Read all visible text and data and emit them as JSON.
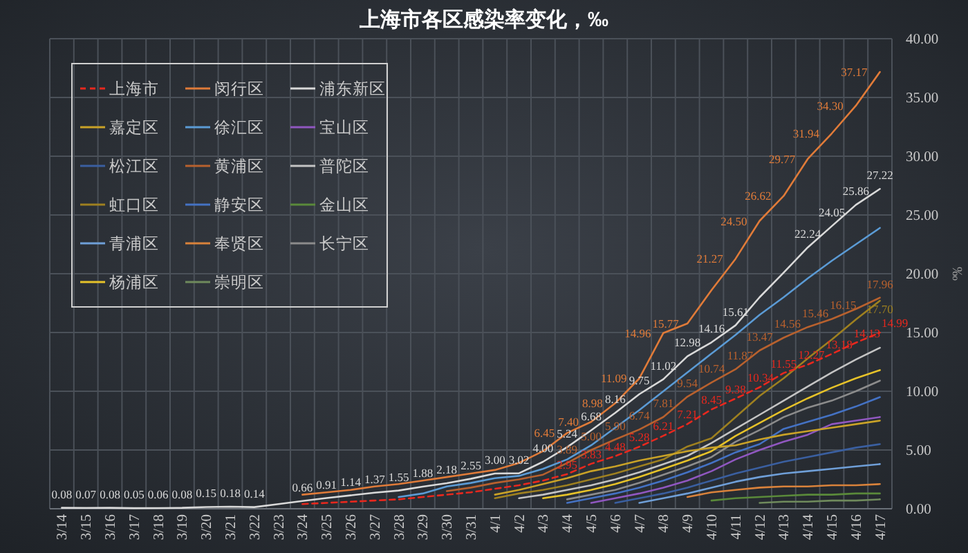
{
  "chart_data": {
    "type": "line",
    "title": "上海市各区感染率变化，‰",
    "ylabel": "‰",
    "categories": [
      "3/14",
      "3/15",
      "3/16",
      "3/17",
      "3/18",
      "3/19",
      "3/20",
      "3/21",
      "3/22",
      "3/23",
      "3/24",
      "3/25",
      "3/26",
      "3/27",
      "3/28",
      "3/29",
      "3/30",
      "3/31",
      "4/1",
      "4/2",
      "4/3",
      "4/4",
      "4/5",
      "4/6",
      "4/7",
      "4/8",
      "4/9",
      "4/10",
      "4/11",
      "4/12",
      "4/13",
      "4/14",
      "4/15",
      "4/16",
      "4/17"
    ],
    "ylim": [
      0,
      40
    ],
    "yticks": [
      {
        "value": 0,
        "label": "0.00"
      },
      {
        "value": 5,
        "label": "5.00"
      },
      {
        "value": 10,
        "label": "10.00"
      },
      {
        "value": 15,
        "label": "15.00"
      },
      {
        "value": 20,
        "label": "20.00"
      },
      {
        "value": 25,
        "label": "25.00"
      },
      {
        "value": 30,
        "label": "30.00"
      },
      {
        "value": 35,
        "label": "35.00"
      },
      {
        "value": 40,
        "label": "40.00"
      }
    ],
    "grid": true,
    "legend": "top left",
    "series": [
      {
        "name": "上海市",
        "color": "#e8281e",
        "line_style": "dashed",
        "values": [
          null,
          null,
          null,
          null,
          null,
          null,
          null,
          null,
          null,
          null,
          0.4,
          0.5,
          0.6,
          0.7,
          0.8,
          1.0,
          1.2,
          1.4,
          1.7,
          2.0,
          2.4,
          2.95,
          3.83,
          4.48,
          5.28,
          6.21,
          7.21,
          8.45,
          9.38,
          10.34,
          11.55,
          12.27,
          13.18,
          14.13,
          14.99
        ],
        "value_labels": [
          null,
          null,
          null,
          null,
          null,
          null,
          null,
          null,
          null,
          null,
          null,
          null,
          null,
          null,
          null,
          null,
          null,
          null,
          null,
          null,
          null,
          "2.95",
          "3.83",
          "4.48",
          "5.28",
          "6.21",
          "7.21",
          "8.45",
          "9.38",
          "10.34",
          "11.55",
          "12.27",
          "13.18",
          "14.13",
          "14.99"
        ]
      },
      {
        "name": "闵行区",
        "color": "#e07b39",
        "values": [
          null,
          null,
          null,
          null,
          null,
          null,
          null,
          null,
          null,
          null,
          1.2,
          1.4,
          1.6,
          1.9,
          2.1,
          2.4,
          2.7,
          3.0,
          3.3,
          3.9,
          4.9,
          6.45,
          7.4,
          8.98,
          11.09,
          14.96,
          15.77,
          18.6,
          21.27,
          24.5,
          26.62,
          29.77,
          31.94,
          34.3,
          37.17
        ],
        "value_labels": [
          null,
          null,
          null,
          null,
          null,
          null,
          null,
          null,
          null,
          null,
          null,
          null,
          null,
          null,
          null,
          null,
          null,
          null,
          null,
          null,
          null,
          "6.45",
          "7.40",
          "8.98",
          "11.09",
          "14.96",
          "15.77",
          null,
          "21.27",
          "24.50",
          "26.62",
          "29.77",
          "31.94",
          "34.30",
          "37.17"
        ]
      },
      {
        "name": "浦东新区",
        "color": "#d9d9d9",
        "values": [
          0.08,
          0.07,
          0.08,
          0.05,
          0.06,
          0.08,
          0.15,
          0.18,
          0.14,
          0.4,
          0.66,
          0.91,
          1.14,
          1.37,
          1.55,
          1.88,
          2.18,
          2.55,
          3.0,
          3.02,
          4.0,
          5.24,
          6.68,
          8.16,
          9.75,
          11.02,
          12.98,
          14.16,
          15.61,
          18.0,
          20.1,
          22.24,
          24.05,
          25.86,
          27.22
        ],
        "value_labels": [
          "0.08",
          "0.07",
          "0.08",
          "0.05",
          "0.06",
          "0.08",
          "0.15",
          "0.18",
          "0.14",
          null,
          "0.66",
          "0.91",
          "1.14",
          "1.37",
          "1.55",
          "1.88",
          "2.18",
          "2.55",
          "3.00",
          "3.02",
          "4.00",
          "5.24",
          "6.68",
          "8.16",
          "9.75",
          "11.02",
          "12.98",
          "14.16",
          "15.61",
          null,
          null,
          "22.24",
          "24.05",
          "25.86",
          "27.22"
        ]
      },
      {
        "name": "嘉定区",
        "color": "#c9a227",
        "values": [
          null,
          null,
          null,
          null,
          null,
          null,
          null,
          null,
          null,
          null,
          null,
          null,
          null,
          null,
          null,
          null,
          null,
          null,
          1.2,
          1.6,
          2.1,
          2.6,
          3.2,
          3.6,
          4.1,
          4.5,
          4.9,
          5.2,
          5.4,
          5.9,
          6.3,
          6.6,
          6.9,
          7.2,
          7.5
        ]
      },
      {
        "name": "徐汇区",
        "color": "#5b9bd5",
        "values": [
          null,
          null,
          null,
          null,
          null,
          null,
          null,
          null,
          null,
          null,
          null,
          null,
          null,
          null,
          1.0,
          1.3,
          1.9,
          2.2,
          2.6,
          2.8,
          3.4,
          4.2,
          5.4,
          6.9,
          8.4,
          10.0,
          11.6,
          13.2,
          14.8,
          16.5,
          18.0,
          19.6,
          21.1,
          22.5,
          23.9
        ]
      },
      {
        "name": "宝山区",
        "color": "#9057c0",
        "values": [
          null,
          null,
          null,
          null,
          null,
          null,
          null,
          null,
          null,
          null,
          null,
          null,
          null,
          null,
          null,
          null,
          null,
          null,
          null,
          null,
          null,
          null,
          0.5,
          0.9,
          1.3,
          1.8,
          2.4,
          3.2,
          4.2,
          5.0,
          5.7,
          6.3,
          7.2,
          7.5,
          7.8
        ]
      },
      {
        "name": "松江区",
        "color": "#3a5fa0",
        "values": [
          null,
          null,
          null,
          null,
          null,
          null,
          null,
          null,
          null,
          null,
          null,
          null,
          null,
          null,
          null,
          null,
          null,
          null,
          null,
          null,
          null,
          null,
          null,
          0.5,
          0.9,
          1.3,
          1.8,
          2.4,
          3.0,
          3.5,
          4.0,
          4.4,
          4.8,
          5.2,
          5.5
        ]
      },
      {
        "name": "黄浦区",
        "color": "#b8612e",
        "values": [
          null,
          null,
          null,
          null,
          null,
          null,
          null,
          null,
          null,
          null,
          null,
          null,
          null,
          null,
          null,
          null,
          1.5,
          1.8,
          2.2,
          2.5,
          2.9,
          3.89,
          5.0,
          5.9,
          6.74,
          7.81,
          9.54,
          10.74,
          11.87,
          13.47,
          14.56,
          15.46,
          16.15,
          17.0,
          17.96
        ],
        "value_labels": [
          null,
          null,
          null,
          null,
          null,
          null,
          null,
          null,
          null,
          null,
          null,
          null,
          null,
          null,
          null,
          null,
          null,
          null,
          null,
          null,
          null,
          "3.89",
          "5.00",
          "5.90",
          "6.74",
          "7.81",
          "9.54",
          "10.74",
          "11.87",
          "13.47",
          "14.56",
          "15.46",
          "16.15",
          null,
          "17.96"
        ]
      },
      {
        "name": "普陀区",
        "color": "#c4c4c4",
        "values": [
          null,
          null,
          null,
          null,
          null,
          null,
          null,
          null,
          null,
          null,
          null,
          null,
          null,
          null,
          null,
          null,
          null,
          null,
          null,
          0.9,
          1.2,
          1.6,
          2.0,
          2.5,
          3.1,
          3.8,
          4.5,
          5.6,
          6.8,
          8.0,
          9.2,
          10.4,
          11.6,
          12.7,
          13.7
        ]
      },
      {
        "name": "虹口区",
        "color": "#9e8020",
        "values": [
          null,
          null,
          null,
          null,
          null,
          null,
          null,
          null,
          null,
          null,
          null,
          null,
          null,
          null,
          null,
          null,
          null,
          null,
          0.9,
          1.3,
          1.6,
          2.0,
          2.5,
          3.0,
          3.6,
          4.2,
          5.3,
          6.0,
          7.8,
          9.6,
          11.1,
          12.8,
          14.4,
          16.1,
          17.7
        ],
        "value_labels": [
          null,
          null,
          null,
          null,
          null,
          null,
          null,
          null,
          null,
          null,
          null,
          null,
          null,
          null,
          null,
          null,
          null,
          null,
          null,
          null,
          null,
          null,
          null,
          null,
          null,
          null,
          null,
          null,
          null,
          null,
          null,
          null,
          null,
          null,
          "17.70"
        ]
      },
      {
        "name": "静安区",
        "color": "#4472c4",
        "values": [
          null,
          null,
          null,
          null,
          null,
          null,
          null,
          null,
          null,
          null,
          null,
          null,
          null,
          null,
          null,
          null,
          null,
          null,
          null,
          null,
          null,
          0.5,
          0.9,
          1.3,
          1.8,
          2.4,
          3.1,
          3.9,
          4.8,
          5.5,
          6.8,
          7.4,
          8.0,
          8.7,
          9.5
        ]
      },
      {
        "name": "金山区",
        "color": "#5a8a3a",
        "values": [
          null,
          null,
          null,
          null,
          null,
          null,
          null,
          null,
          null,
          null,
          null,
          null,
          null,
          null,
          null,
          null,
          null,
          null,
          null,
          null,
          null,
          null,
          null,
          null,
          null,
          null,
          null,
          0.7,
          0.9,
          1.0,
          1.1,
          1.2,
          1.2,
          1.3,
          1.3
        ]
      },
      {
        "name": "青浦区",
        "color": "#6f9fd8",
        "values": [
          null,
          null,
          null,
          null,
          null,
          null,
          null,
          null,
          null,
          null,
          null,
          null,
          null,
          null,
          null,
          null,
          null,
          null,
          null,
          null,
          null,
          null,
          null,
          null,
          0.5,
          0.9,
          1.3,
          1.8,
          2.3,
          2.7,
          3.0,
          3.2,
          3.4,
          3.6,
          3.8
        ]
      },
      {
        "name": "奉贤区",
        "color": "#d9823b",
        "values": [
          null,
          null,
          null,
          null,
          null,
          null,
          null,
          null,
          null,
          null,
          null,
          null,
          null,
          null,
          null,
          null,
          null,
          null,
          null,
          null,
          null,
          null,
          null,
          null,
          null,
          null,
          1.0,
          1.4,
          1.6,
          1.8,
          1.9,
          1.9,
          2.0,
          2.0,
          2.1
        ]
      },
      {
        "name": "长宁区",
        "color": "#8c8c8c",
        "values": [
          null,
          null,
          null,
          null,
          null,
          null,
          null,
          null,
          null,
          null,
          null,
          null,
          null,
          null,
          null,
          null,
          null,
          null,
          null,
          null,
          null,
          0.8,
          1.2,
          1.6,
          2.2,
          2.9,
          3.6,
          4.4,
          5.7,
          6.7,
          7.8,
          8.6,
          9.2,
          10.0,
          10.9
        ]
      },
      {
        "name": "杨浦区",
        "color": "#e6c229",
        "values": [
          null,
          null,
          null,
          null,
          null,
          null,
          null,
          null,
          null,
          null,
          null,
          null,
          null,
          null,
          null,
          null,
          null,
          null,
          null,
          null,
          0.9,
          1.2,
          1.6,
          2.1,
          2.7,
          3.4,
          4.1,
          4.9,
          6.2,
          7.3,
          8.4,
          9.4,
          10.3,
          11.1,
          11.8
        ]
      },
      {
        "name": "崇明区",
        "color": "#6f8a5c",
        "values": [
          null,
          null,
          null,
          null,
          null,
          null,
          null,
          null,
          null,
          null,
          null,
          null,
          null,
          null,
          null,
          null,
          null,
          null,
          null,
          null,
          null,
          null,
          null,
          null,
          null,
          null,
          null,
          null,
          null,
          0.5,
          0.6,
          0.6,
          0.7,
          0.7,
          0.8
        ]
      }
    ]
  }
}
